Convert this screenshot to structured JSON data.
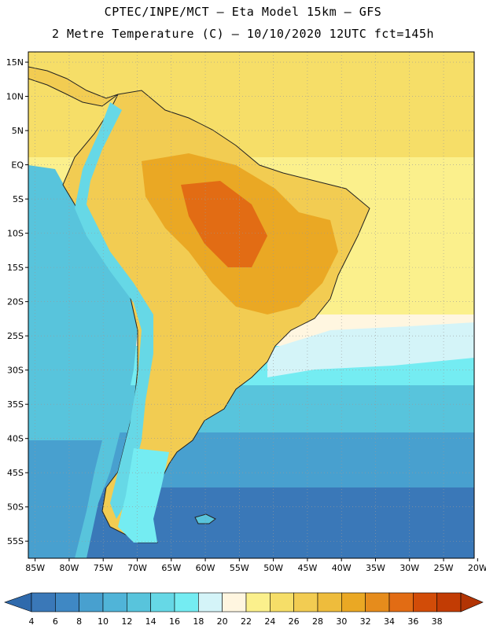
{
  "header": {
    "line1": "CPTEC/INPE/MCT –  Eta Model 15km – GFS",
    "line2": "2 Metre Temperature (C) – 10/10/2020 12UTC fct=145h"
  },
  "map": {
    "lat_labels": [
      "15N",
      "10N",
      "5N",
      "EQ",
      "5S",
      "10S",
      "15S",
      "20S",
      "25S",
      "30S",
      "35S",
      "40S",
      "45S",
      "50S",
      "55S"
    ],
    "lon_labels": [
      "85W",
      "80W",
      "75W",
      "70W",
      "65W",
      "60W",
      "55W",
      "50W",
      "45W",
      "40W",
      "35W",
      "30W",
      "25W",
      "20W"
    ],
    "lat_range": [
      -57.5,
      16.5
    ],
    "lon_range": [
      -86,
      -20.5
    ]
  },
  "colorbar": {
    "labels": [
      "4",
      "6",
      "8",
      "10",
      "12",
      "14",
      "16",
      "18",
      "20",
      "22",
      "24",
      "26",
      "28",
      "30",
      "32",
      "34",
      "36",
      "38"
    ],
    "colors": [
      "#3a78b8",
      "#3f88c4",
      "#48a0cf",
      "#50b4d8",
      "#58c4dc",
      "#66d8e6",
      "#74ecf2",
      "#d4f4f8",
      "#fff6e0",
      "#fbf08c",
      "#f6de68",
      "#f2cc52",
      "#eebc3c",
      "#eaa824",
      "#e68c1c",
      "#e26c14",
      "#d24c08",
      "#c23c04"
    ],
    "end_low": "#2f6aac",
    "end_high": "#b23404"
  }
}
